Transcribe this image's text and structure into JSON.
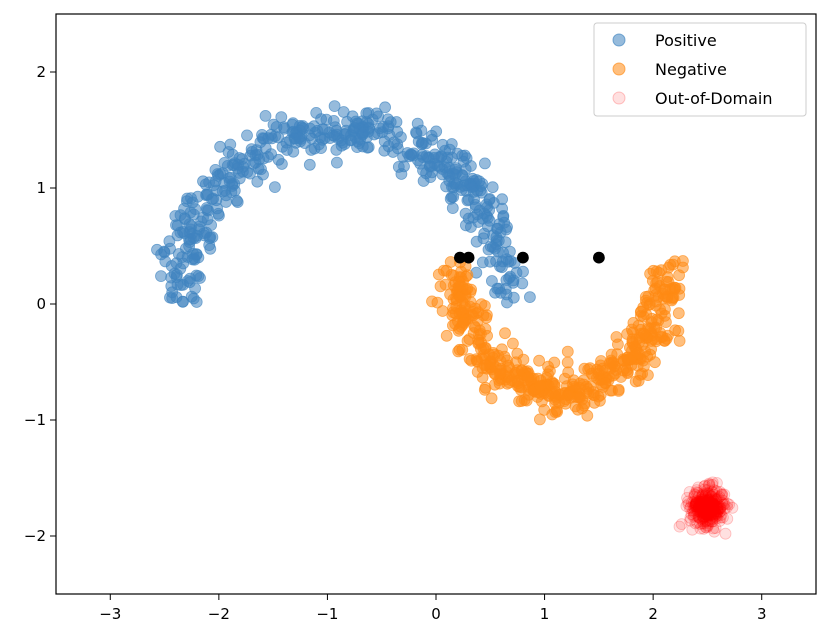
{
  "chart_data": {
    "type": "scatter",
    "title": "",
    "xlabel": "",
    "ylabel": "",
    "xlim": [
      -3.5,
      3.5
    ],
    "ylim": [
      -2.5,
      2.5
    ],
    "x_ticks": [
      -3,
      -2,
      -1,
      0,
      1,
      2,
      3
    ],
    "y_ticks": [
      -2,
      -1,
      0,
      1,
      2
    ],
    "x_tick_labels": [
      "−3",
      "−2",
      "−1",
      "0",
      "1",
      "2",
      "3"
    ],
    "y_tick_labels": [
      "−2",
      "−1",
      "0",
      "1",
      "2"
    ],
    "grid": false,
    "legend": {
      "placement": "top-right",
      "entries": [
        {
          "label": "Positive",
          "color": "#3f84c0",
          "opacity": 0.55
        },
        {
          "label": "Negative",
          "color": "#ff8a14",
          "opacity": 0.55
        },
        {
          "label": "Out-of-Domain",
          "color": "#ff0000",
          "opacity": 0.12
        }
      ]
    },
    "series": [
      {
        "name": "Positive",
        "color": "#3f84c0",
        "opacity": 0.55,
        "distribution": {
          "shape": "upper-moon",
          "center": [
            0,
            0
          ],
          "radius": 1.0,
          "scale": 1.5,
          "shift": [
            -0.85,
            0.1
          ],
          "noise": 0.1,
          "count": 500
        }
      },
      {
        "name": "Negative",
        "color": "#ff8a14",
        "opacity": 0.55,
        "distribution": {
          "shape": "lower-moon",
          "center": [
            1.15,
            0.25
          ],
          "radius": 1.0,
          "scale": 1.0,
          "noise": 0.1,
          "count": 500
        }
      },
      {
        "name": "Out-of-Domain",
        "color": "#ff0000",
        "opacity": 0.12,
        "distribution": {
          "shape": "gaussian",
          "center": [
            2.5,
            -1.75
          ],
          "std": 0.08,
          "count": 300
        }
      },
      {
        "name": "",
        "color": "#000000",
        "opacity": 1.0,
        "points": [
          [
            0.22,
            0.4
          ],
          [
            0.3,
            0.4
          ],
          [
            0.8,
            0.4
          ],
          [
            1.5,
            0.4
          ]
        ]
      }
    ]
  }
}
